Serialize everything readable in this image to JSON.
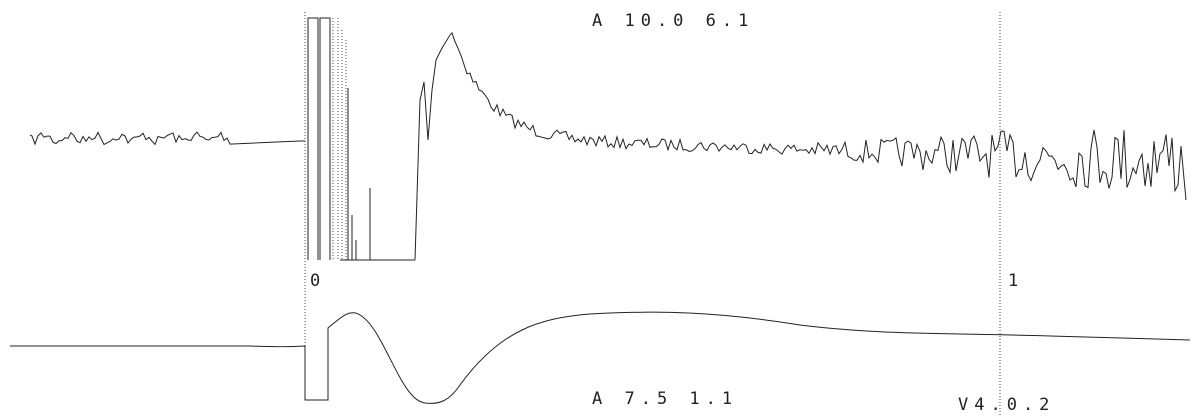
{
  "upper_trace": {
    "label": "A 10.0 6.1"
  },
  "markers": [
    "0",
    "1"
  ],
  "lower_trace": {
    "label": "A 7.5 1.1",
    "note": "V4.0.2"
  }
}
